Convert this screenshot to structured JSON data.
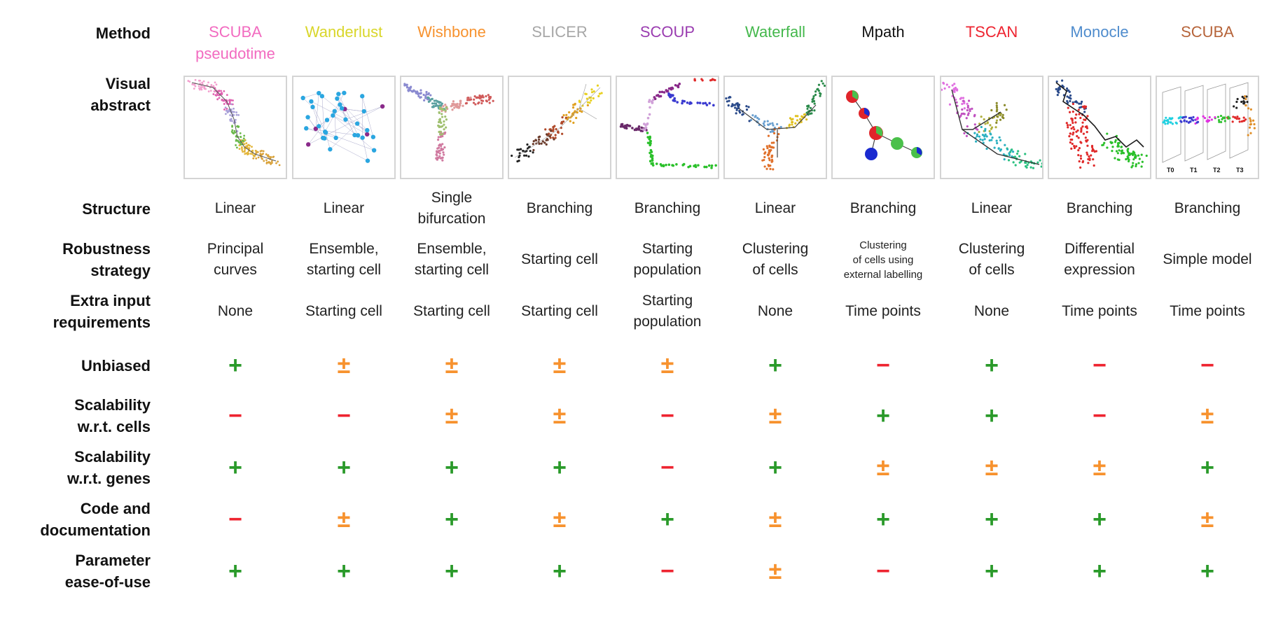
{
  "row_labels": {
    "method": [
      "Method"
    ],
    "visual": [
      "Visual",
      "abstract"
    ],
    "structure": [
      "Structure"
    ],
    "robustness": [
      "Robustness",
      "strategy"
    ],
    "extra_input": [
      "Extra input",
      "requirements"
    ],
    "unbiased": [
      "Unbiased"
    ],
    "scal_cells": [
      "Scalability",
      "w.r.t. cells"
    ],
    "scal_genes": [
      "Scalability",
      "w.r.t. genes"
    ],
    "code_doc": [
      "Code and",
      "documentation"
    ],
    "param": [
      "Parameter",
      "ease-of-use"
    ]
  },
  "methods": [
    {
      "name": [
        "SCUBA",
        "pseudotime"
      ],
      "color": "#f26bc0",
      "visual": "scuba-pseudotime",
      "structure": [
        "Linear"
      ],
      "robustness": [
        "Principal",
        "curves"
      ],
      "extra_input": [
        "None"
      ],
      "unbiased": "+",
      "scal_cells": "−",
      "scal_genes": "+",
      "code_doc": "−",
      "param": "+"
    },
    {
      "name": [
        "Wanderlust"
      ],
      "color": "#d9d62a",
      "visual": "wanderlust",
      "structure": [
        "Linear"
      ],
      "robustness": [
        "Ensemble,",
        "starting cell"
      ],
      "extra_input": [
        "Starting cell"
      ],
      "unbiased": "±",
      "scal_cells": "−",
      "scal_genes": "+",
      "code_doc": "±",
      "param": "+"
    },
    {
      "name": [
        "Wishbone"
      ],
      "color": "#f7922e",
      "visual": "wishbone",
      "structure": [
        "Single",
        "bifurcation"
      ],
      "robustness": [
        "Ensemble,",
        "starting cell"
      ],
      "extra_input": [
        "Starting cell"
      ],
      "unbiased": "±",
      "scal_cells": "±",
      "scal_genes": "+",
      "code_doc": "+",
      "param": "+"
    },
    {
      "name": [
        "SLICER"
      ],
      "color": "#a7a7a7",
      "visual": "slicer",
      "structure": [
        "Branching"
      ],
      "robustness": [
        "Starting cell"
      ],
      "extra_input": [
        "Starting cell"
      ],
      "unbiased": "±",
      "scal_cells": "±",
      "scal_genes": "+",
      "code_doc": "±",
      "param": "+"
    },
    {
      "name": [
        "SCOUP"
      ],
      "color": "#9a3cb0",
      "visual": "scoup",
      "structure": [
        "Branching"
      ],
      "robustness": [
        "Starting",
        "population"
      ],
      "extra_input": [
        "Starting",
        "population"
      ],
      "unbiased": "±",
      "scal_cells": "−",
      "scal_genes": "−",
      "code_doc": "+",
      "param": "−"
    },
    {
      "name": [
        "Waterfall"
      ],
      "color": "#44b84c",
      "visual": "waterfall",
      "structure": [
        "Linear"
      ],
      "robustness": [
        "Clustering",
        "of cells"
      ],
      "extra_input": [
        "None"
      ],
      "unbiased": "+",
      "scal_cells": "±",
      "scal_genes": "+",
      "code_doc": "±",
      "param": "±"
    },
    {
      "name": [
        "Mpath"
      ],
      "color": "#111111",
      "visual": "mpath",
      "structure": [
        "Branching"
      ],
      "robustness": [
        "Clustering",
        "of cells using",
        "external labelling"
      ],
      "extra_input": [
        "Time points"
      ],
      "unbiased": "−",
      "scal_cells": "+",
      "scal_genes": "±",
      "code_doc": "+",
      "param": "−"
    },
    {
      "name": [
        "TSCAN"
      ],
      "color": "#ee2430",
      "visual": "tscan",
      "structure": [
        "Linear"
      ],
      "robustness": [
        "Clustering",
        "of cells"
      ],
      "extra_input": [
        "None"
      ],
      "unbiased": "+",
      "scal_cells": "+",
      "scal_genes": "±",
      "code_doc": "+",
      "param": "+"
    },
    {
      "name": [
        "Monocle"
      ],
      "color": "#4f8ccd",
      "visual": "monocle",
      "structure": [
        "Branching"
      ],
      "robustness": [
        "Differential",
        "expression"
      ],
      "extra_input": [
        "Time points"
      ],
      "unbiased": "−",
      "scal_cells": "−",
      "scal_genes": "±",
      "code_doc": "+",
      "param": "+"
    },
    {
      "name": [
        "SCUBA"
      ],
      "color": "#b6643a",
      "visual": "scuba",
      "structure": [
        "Branching"
      ],
      "robustness": [
        "Simple model"
      ],
      "extra_input": [
        "Time points"
      ],
      "unbiased": "−",
      "scal_cells": "±",
      "scal_genes": "+",
      "code_doc": "±",
      "param": "+",
      "time_labels": [
        "T0",
        "T1",
        "T2",
        "T3"
      ]
    }
  ],
  "symbol_colors": {
    "+": "#2a9a2a",
    "±": "#f7922e",
    "−": "#ee2430"
  }
}
